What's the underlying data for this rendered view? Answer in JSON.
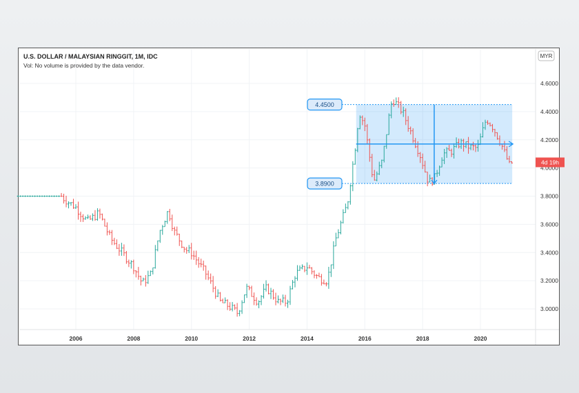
{
  "header": {
    "title": "U.S. DOLLAR / MALAYSIAN RINGGIT, 1M, IDC",
    "subtitle": "Vol: No volume is provided by the data vendor."
  },
  "currency_label": "MYR",
  "countdown_label": "4d 19h",
  "colors": {
    "up": "#26a69a",
    "down": "#ef5350",
    "range_fill": "#2196f3",
    "countdown_bg": "#ef5350"
  },
  "chart_data": {
    "type": "ohlc",
    "title": "U.S. DOLLAR / MALAYSIAN RINGGIT, 1M, IDC",
    "interval": "1M",
    "ylim": [
      2.85,
      4.75
    ],
    "xlim": [
      2004.0,
      2022.0
    ],
    "yticks": [
      "4.6000",
      "4.4000",
      "4.2000",
      "4.0000",
      "3.8000",
      "3.6000",
      "3.4000",
      "3.2000",
      "3.0000"
    ],
    "xticks": [
      "2006",
      "2008",
      "2010",
      "2012",
      "2014",
      "2016",
      "2018",
      "2020"
    ],
    "grid": true,
    "close_keypoints": [
      [
        2004.0,
        3.8
      ],
      [
        2005.5,
        3.8
      ],
      [
        2005.6,
        3.78
      ],
      [
        2006.0,
        3.72
      ],
      [
        2006.4,
        3.62
      ],
      [
        2006.8,
        3.68
      ],
      [
        2007.2,
        3.5
      ],
      [
        2007.6,
        3.4
      ],
      [
        2008.0,
        3.3
      ],
      [
        2008.3,
        3.18
      ],
      [
        2008.6,
        3.25
      ],
      [
        2008.9,
        3.55
      ],
      [
        2009.2,
        3.7
      ],
      [
        2009.4,
        3.55
      ],
      [
        2009.8,
        3.42
      ],
      [
        2010.0,
        3.4
      ],
      [
        2010.5,
        3.25
      ],
      [
        2011.0,
        3.05
      ],
      [
        2011.3,
        3.02
      ],
      [
        2011.6,
        2.97
      ],
      [
        2011.9,
        3.15
      ],
      [
        2012.3,
        3.05
      ],
      [
        2012.6,
        3.15
      ],
      [
        2013.0,
        3.05
      ],
      [
        2013.3,
        3.05
      ],
      [
        2013.6,
        3.25
      ],
      [
        2014.0,
        3.3
      ],
      [
        2014.4,
        3.22
      ],
      [
        2014.7,
        3.2
      ],
      [
        2015.0,
        3.5
      ],
      [
        2015.4,
        3.75
      ],
      [
        2015.7,
        4.2
      ],
      [
        2015.8,
        4.4
      ],
      [
        2016.0,
        4.3
      ],
      [
        2016.3,
        3.9
      ],
      [
        2016.6,
        4.05
      ],
      [
        2016.9,
        4.45
      ],
      [
        2017.0,
        4.48
      ],
      [
        2017.3,
        4.4
      ],
      [
        2017.6,
        4.25
      ],
      [
        2017.9,
        4.1
      ],
      [
        2018.2,
        3.9
      ],
      [
        2018.4,
        3.92
      ],
      [
        2018.7,
        4.1
      ],
      [
        2019.0,
        4.12
      ],
      [
        2019.3,
        4.18
      ],
      [
        2019.6,
        4.15
      ],
      [
        2019.9,
        4.14
      ],
      [
        2020.2,
        4.35
      ],
      [
        2020.4,
        4.3
      ],
      [
        2020.7,
        4.18
      ],
      [
        2021.0,
        4.02
      ],
      [
        2021.1,
        4.04
      ]
    ],
    "range_tool": {
      "high": "4.4500",
      "low": "3.8900",
      "high_value": 4.45,
      "low_value": 3.89,
      "mid_value": 4.17,
      "start": 2015.7,
      "end": 2021.1,
      "marker": 2018.4
    }
  }
}
